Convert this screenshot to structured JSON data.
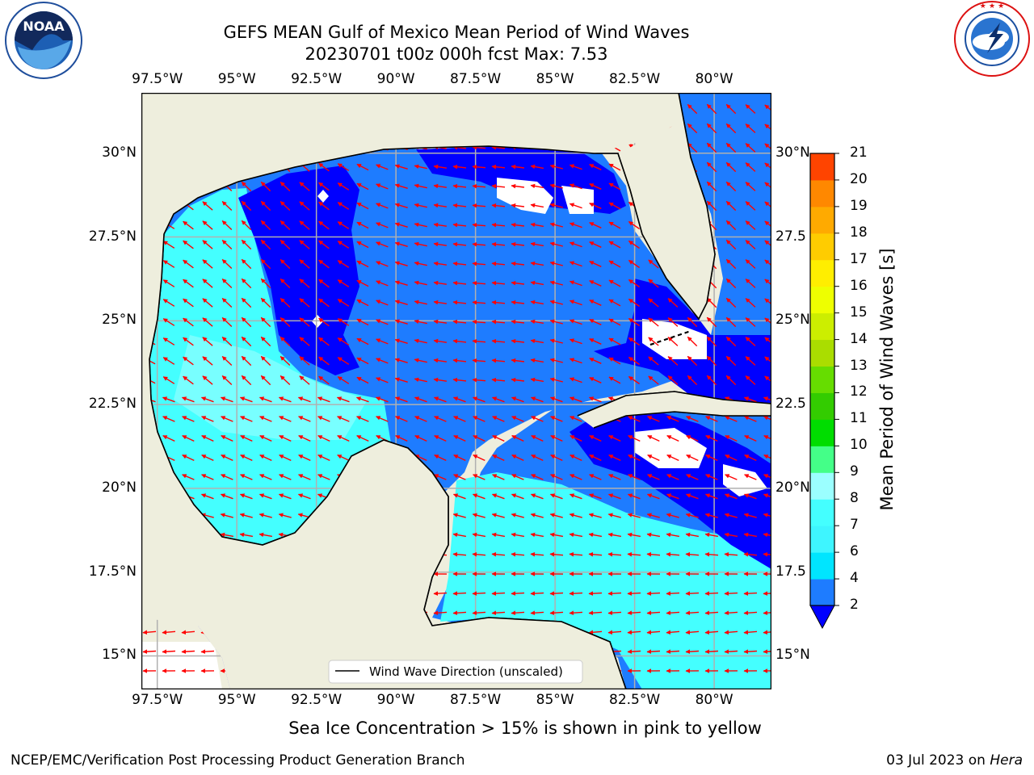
{
  "header": {
    "title_line1": "GEFS MEAN Gulf of Mexico Mean Period of Wind Waves",
    "title_line2": "20230701 t00z 000h fcst   Max: 7.53"
  },
  "logos": {
    "noaa_text": "NOAA",
    "noaa_ring": "NATIONAL OCEANIC AND ATMOSPHERIC ADMINISTRATION · U.S. DEPARTMENT OF COMMERCE",
    "nws_ring": "NATIONAL WEATHER SERVICE"
  },
  "map": {
    "lon_labels": [
      "97.5°W",
      "95°W",
      "92.5°W",
      "90°W",
      "87.5°W",
      "85°W",
      "82.5°W",
      "80°W"
    ],
    "lat_labels_left": [
      "30°N",
      "27.5°N",
      "25°N",
      "22.5°N",
      "20°N",
      "17.5°N",
      "15°N"
    ],
    "lat_labels_right": [
      "30°N",
      "27.5",
      "25°N",
      "22.5",
      "20°N",
      "17.5",
      "15°N"
    ],
    "lon_range": [
      -98,
      -78.2
    ],
    "lat_range": [
      14,
      31.8
    ],
    "legend_label": "Wind Wave Direction (unscaled)",
    "colors": {
      "land": "#eeeedd",
      "arrow": "#ff0000",
      "grid": "#b0b0b0",
      "ice_free": "#ffffff"
    }
  },
  "colorbar": {
    "label": "Mean Period of Wind Waves [s]",
    "ticks": [
      "2",
      "4",
      "6",
      "7",
      "8",
      "9",
      "10",
      "11",
      "12",
      "13",
      "14",
      "15",
      "16",
      "17",
      "18",
      "19",
      "20",
      "21"
    ],
    "bounds": [
      2,
      4,
      6,
      7,
      8,
      9,
      10,
      11,
      12,
      13,
      14,
      15,
      16,
      17,
      18,
      19,
      20,
      21
    ],
    "colors": [
      "#1e7cff",
      "#00e5ff",
      "#3ef5ff",
      "#44ffff",
      "#9bffff",
      "#44ff88",
      "#00dd00",
      "#33cc00",
      "#66dd00",
      "#aadd00",
      "#ccee00",
      "#eeff00",
      "#ffee00",
      "#ffcc00",
      "#ffaa00",
      "#ff8800",
      "#ff4400",
      "#ff0000"
    ],
    "under_color": "#0000ff"
  },
  "footer": {
    "ice_note": "Sea Ice Concentration > 15% is shown in pink to yellow",
    "credit": "NCEP/EMC/Verification Post Processing Product Generation Branch",
    "date_prefix": "03 Jul 2023 on ",
    "machine": "Hera"
  }
}
